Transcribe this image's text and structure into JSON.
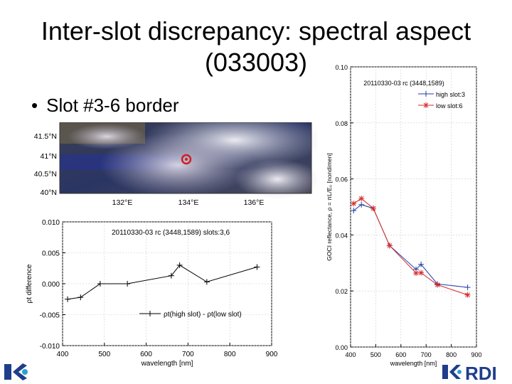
{
  "slide": {
    "title_line1": "Inter-slot discrepancy: spectral aspect",
    "title_line2": "(033003)",
    "bullet": "Slot #3-6 border"
  },
  "map": {
    "lat_labels": [
      "41.5°N",
      "41°N",
      "40.5°N",
      "40°N"
    ],
    "lon_labels": [
      "132°E",
      "134°E",
      "136°E"
    ]
  },
  "logos": {
    "left_text": "KO",
    "right_text": "RDI"
  },
  "chart_data": [
    {
      "type": "line",
      "title": "20110330-03 rc (3448,1589) slots:3,6",
      "xlabel": "wavelength [nm]",
      "ylabel": "ρt difference",
      "xlim": [
        400,
        900
      ],
      "ylim": [
        -0.01,
        0.01
      ],
      "xticks": [
        400,
        500,
        600,
        700,
        800,
        900
      ],
      "xtick_labels": [
        "400",
        "500",
        "600",
        "700",
        "800",
        "900"
      ],
      "yticks": [
        0.01,
        0.005,
        0.0,
        -0.005,
        -0.01
      ],
      "ytick_labels": [
        "0.010",
        "0.005",
        "0.000",
        "-0.005",
        "-0.010"
      ],
      "legend": "ρt(high slot) - ρt(low slot)",
      "series": [
        {
          "name": "ρt(high slot) - ρt(low slot)",
          "color": "#000000",
          "x": [
            412,
            443,
            490,
            555,
            660,
            680,
            745,
            865
          ],
          "y": [
            -0.0025,
            -0.0022,
            0.0,
            0.0,
            0.0013,
            0.003,
            0.0003,
            0.0027
          ]
        }
      ]
    },
    {
      "type": "line",
      "title": "20110330-03 rc (3448,1589)",
      "xlabel": "wavelength [nm]",
      "ylabel": "GOCI reflectance, ρ = πL/E₀ [nondimen]",
      "xlim": [
        400,
        900
      ],
      "ylim": [
        0.0,
        0.1
      ],
      "xticks": [
        400,
        500,
        600,
        700,
        800,
        900
      ],
      "xtick_labels": [
        "400",
        "500",
        "600",
        "700",
        "800",
        "900"
      ],
      "yticks": [
        0.1,
        0.08,
        0.06,
        0.04,
        0.02,
        0.0
      ],
      "ytick_labels": [
        "0.10",
        "0.08",
        "0.06",
        "0.04",
        "0.02",
        "0.00"
      ],
      "series": [
        {
          "name": "high slot:3",
          "color": "#1f3ea8",
          "x": [
            412,
            443,
            490,
            555,
            660,
            680,
            745,
            865
          ],
          "y": [
            0.0487,
            0.0508,
            0.0495,
            0.0362,
            0.0277,
            0.0295,
            0.0225,
            0.0213
          ]
        },
        {
          "name": "low slot:6",
          "color": "#d42a2a",
          "x": [
            412,
            443,
            490,
            555,
            660,
            680,
            745,
            865
          ],
          "y": [
            0.0512,
            0.053,
            0.0495,
            0.0362,
            0.0264,
            0.0265,
            0.0222,
            0.0186
          ]
        }
      ]
    }
  ]
}
